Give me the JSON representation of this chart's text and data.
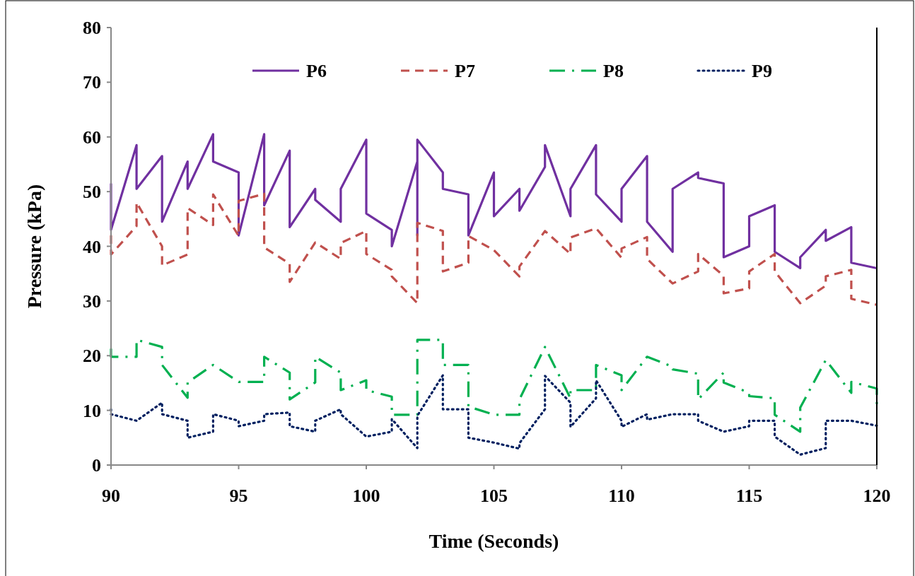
{
  "chart_data": {
    "type": "line",
    "xlabel": "Time (Seconds)",
    "ylabel": "Pressure (kPa)",
    "xlim": [
      90,
      120
    ],
    "xticks": [
      90,
      95,
      100,
      105,
      110,
      115,
      120
    ],
    "ylim": [
      0,
      80
    ],
    "yticks": [
      0,
      10,
      20,
      30,
      40,
      50,
      60,
      70,
      80
    ],
    "grid": false,
    "legend": "top",
    "marker": "none",
    "series": [
      {
        "name": "P6",
        "color": "#7030a0",
        "line_style": "solid",
        "x": [
          90,
          90,
          91,
          91,
          92,
          92,
          93,
          93,
          94,
          94,
          95,
          95,
          96,
          96,
          97,
          97,
          98,
          98,
          99,
          99,
          100,
          100,
          101,
          101,
          102,
          102,
          102,
          103,
          103,
          104,
          104,
          105,
          105,
          106,
          106,
          107,
          107,
          108,
          108,
          109,
          109,
          110,
          110,
          111,
          111,
          112,
          112,
          113,
          113,
          114,
          114,
          115,
          115,
          116,
          116,
          117,
          117,
          118,
          118,
          119,
          119,
          120
        ],
        "values": [
          51.5,
          43,
          58.5,
          50.5,
          56.5,
          44.5,
          55.5,
          50.5,
          60.5,
          55.5,
          53.5,
          42,
          60.5,
          47.5,
          57.5,
          43.5,
          50.5,
          48.5,
          44.5,
          50.5,
          59.5,
          46,
          43,
          40,
          55.5,
          42,
          59.5,
          53.5,
          50.5,
          49.5,
          42,
          53.5,
          45.5,
          50.5,
          46.5,
          54.5,
          58.5,
          45.5,
          50.5,
          58.5,
          49.5,
          44.5,
          50.5,
          56.5,
          44.5,
          39,
          50.5,
          53.5,
          52.5,
          51.5,
          38,
          40,
          45.5,
          47.5,
          39,
          36,
          38,
          43,
          41,
          43.5,
          37,
          36
        ]
      },
      {
        "name": "P7",
        "color": "#c0504d",
        "line_style": "dashed",
        "x": [
          90,
          90,
          91,
          91,
          92,
          92,
          93,
          93,
          94,
          94,
          95,
          95,
          96,
          96,
          97,
          97,
          98,
          99,
          99,
          100,
          100,
          101,
          101,
          102,
          102,
          103,
          103,
          104,
          104,
          105,
          106,
          106,
          107,
          108,
          108,
          109,
          110,
          110,
          111,
          111,
          112,
          113,
          113,
          114,
          114,
          115,
          115,
          116,
          116,
          117,
          118,
          118,
          119,
          119,
          120
        ],
        "values": [
          42,
          38.5,
          43.7,
          48,
          40,
          36.5,
          38.5,
          47,
          43.9,
          49.5,
          41.9,
          48.3,
          49.6,
          39.8,
          36.8,
          33.5,
          40.7,
          37.7,
          40.6,
          42.8,
          38.6,
          35.7,
          34.5,
          29.6,
          44.3,
          42.8,
          35.4,
          37,
          41.9,
          39.3,
          34.5,
          36.3,
          42.8,
          38.6,
          41.6,
          43.3,
          37.9,
          39.6,
          41.7,
          37.7,
          33.2,
          35.4,
          38.6,
          34.6,
          31.4,
          32.3,
          35.4,
          38.6,
          35.4,
          29.6,
          32.8,
          34.5,
          35.7,
          30.4,
          29.3
        ]
      },
      {
        "name": "P8",
        "color": "#00b050",
        "line_style": "dashdot",
        "x": [
          90,
          90,
          91,
          91,
          92,
          92,
          93,
          93,
          94,
          95,
          96,
          96,
          97,
          97,
          98,
          98,
          99,
          99,
          100,
          100,
          101,
          101,
          102,
          102,
          103,
          103,
          104,
          104,
          105,
          106,
          106,
          107,
          108,
          108,
          109,
          109,
          110,
          110,
          111,
          112,
          112,
          113,
          113,
          114,
          114,
          115,
          115,
          116,
          116,
          117,
          117,
          118,
          119,
          119,
          120,
          120
        ],
        "values": [
          21.3,
          19.8,
          19.8,
          22.9,
          21.6,
          18.3,
          12.3,
          15.1,
          18.3,
          15.2,
          15.2,
          19.8,
          16.9,
          12,
          15.1,
          19.8,
          16.9,
          13.7,
          15.5,
          13.7,
          12.5,
          9.2,
          9.2,
          22.9,
          22.9,
          18.3,
          18.3,
          10.7,
          9.2,
          9.2,
          12,
          21.6,
          12.2,
          13.7,
          13.7,
          18.3,
          16.4,
          13.7,
          19.8,
          18,
          17.5,
          16.7,
          12,
          16.9,
          15.1,
          13.2,
          12.6,
          12.2,
          9.2,
          6.1,
          10.5,
          19.2,
          13.2,
          15.2,
          14,
          10.3
        ]
      },
      {
        "name": "P9",
        "color": "#002060",
        "line_style": "dotted",
        "x": [
          90,
          90,
          91,
          92,
          92,
          93,
          93,
          94,
          94,
          95,
          95,
          96,
          96,
          97,
          97,
          98,
          98,
          99,
          99,
          100,
          101,
          101,
          102,
          102,
          103,
          103,
          104,
          104,
          105,
          106,
          106,
          107,
          107,
          108,
          108,
          109,
          109,
          110,
          110,
          111,
          111,
          112,
          113,
          113,
          114,
          115,
          115,
          116,
          116,
          117,
          118,
          118,
          119,
          120
        ],
        "values": [
          10.2,
          9.3,
          8.1,
          11.4,
          9.3,
          8.1,
          5,
          6.1,
          9.3,
          8.1,
          7.1,
          8.1,
          9.3,
          9.6,
          7.1,
          6.1,
          8.1,
          10.2,
          9.3,
          5.2,
          6.1,
          8.4,
          3.1,
          9,
          16.4,
          10.2,
          10.2,
          5,
          4.1,
          3,
          4,
          10.2,
          16.3,
          11.4,
          7,
          12.2,
          15.5,
          8.1,
          7,
          9.3,
          8.3,
          9.3,
          9.3,
          8.1,
          6.1,
          7.1,
          8.1,
          8.1,
          5.2,
          1.9,
          3.1,
          8.1,
          8.1,
          7.2
        ]
      }
    ]
  }
}
